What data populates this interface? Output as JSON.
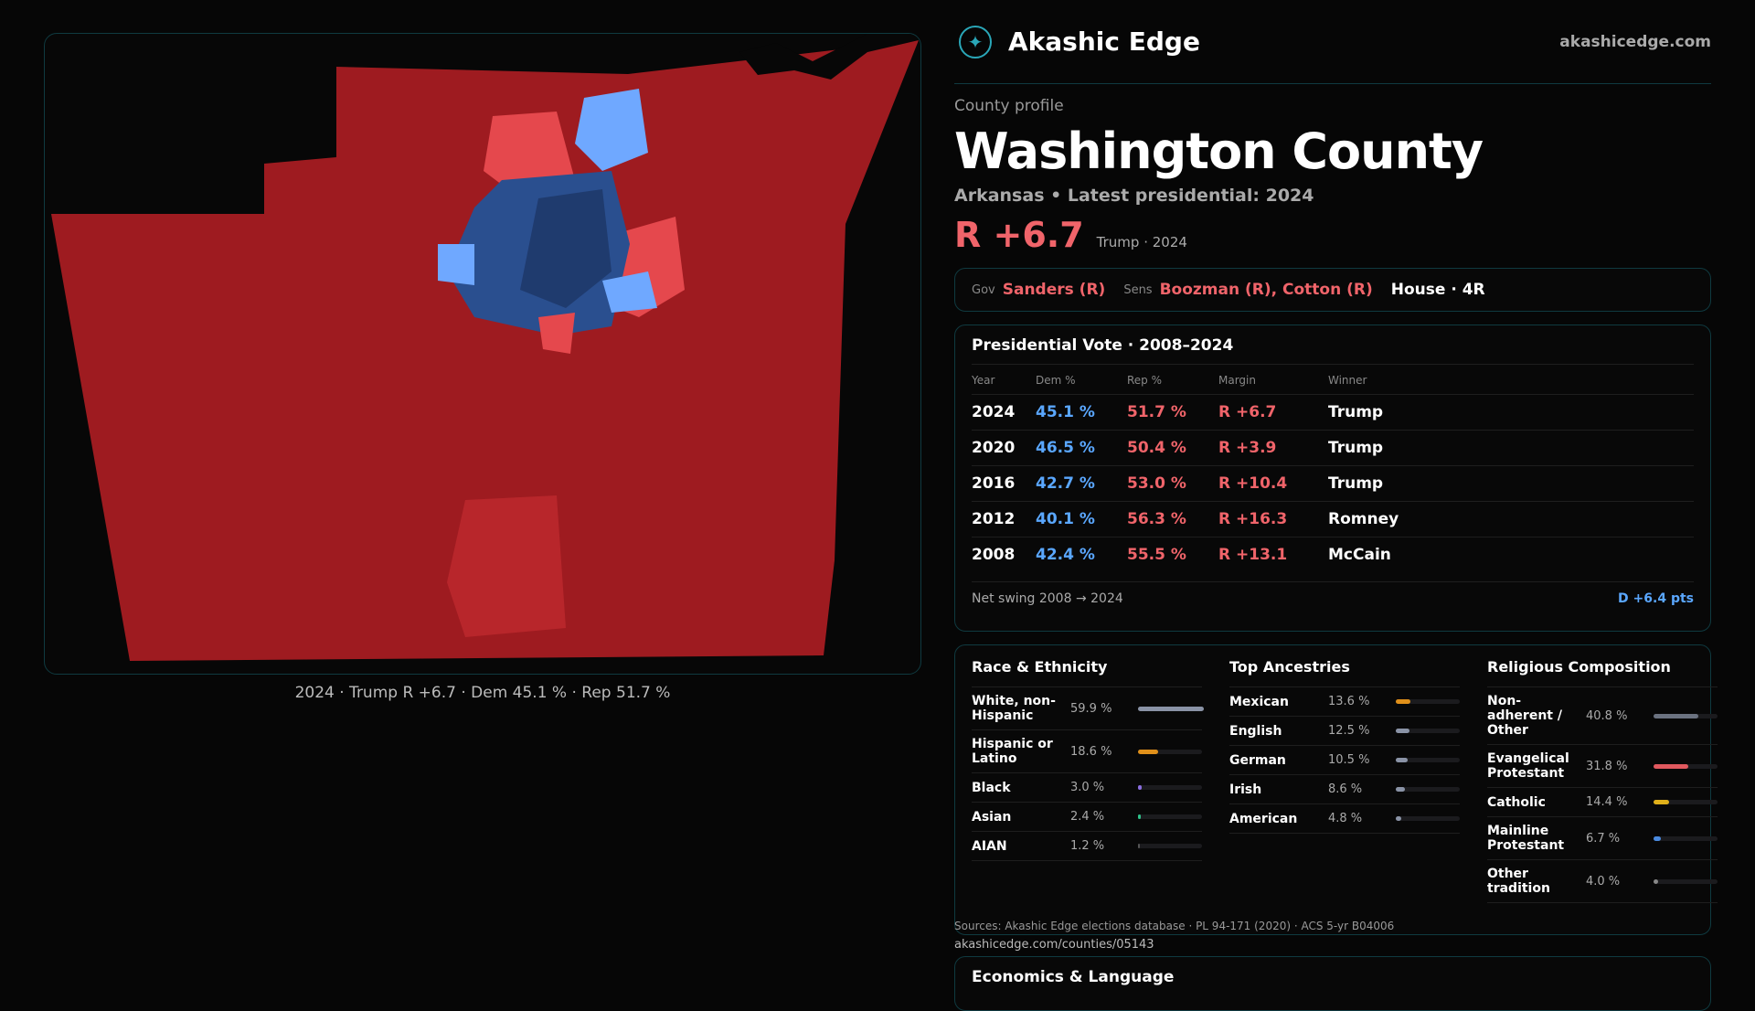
{
  "map": {
    "caption": "2024 · Trump R +6.7 · Dem 45.1 % · Rep 51.7 %",
    "colors": {
      "rep": "#9e1b20",
      "rep_light": "#e5484d",
      "dem": "#2a4f8f",
      "dem_light": "#6fa8ff"
    }
  },
  "header": {
    "brand": "Akashic Edge",
    "site": "akashicedge.com",
    "logo_icon": "compass-icon"
  },
  "profile": {
    "kicker": "County profile",
    "title": "Washington County",
    "subtitle": "Arkansas • Latest presidential: 2024",
    "margin": "R +6.7",
    "margin_note": "Trump · 2024"
  },
  "officials": {
    "gov_label": "Gov",
    "gov": "Sanders (R)",
    "sens_label": "Sens",
    "sens": "Boozman (R), Cotton (R)",
    "house": "House · 4R"
  },
  "vote": {
    "title": "Presidential Vote · 2008–2024",
    "headers": [
      "Year",
      "Dem %",
      "Rep %",
      "Margin",
      "Winner"
    ],
    "rows": [
      [
        "2024",
        "45.1 %",
        "51.7 %",
        "R +6.7",
        "Trump"
      ],
      [
        "2020",
        "46.5 %",
        "50.4 %",
        "R +3.9",
        "Trump"
      ],
      [
        "2016",
        "42.7 %",
        "53.0 %",
        "R +10.4",
        "Trump"
      ],
      [
        "2012",
        "40.1 %",
        "56.3 %",
        "R +16.3",
        "Romney"
      ],
      [
        "2008",
        "42.4 %",
        "55.5 %",
        "R +13.1",
        "McCain"
      ]
    ],
    "swing_label": "Net swing 2008 → 2024",
    "swing": "D +6.4 pts"
  },
  "race": {
    "title": "Race & Ethnicity",
    "rows": [
      {
        "name": "White, non-Hispanic",
        "value": "59.9 %",
        "pct": 59.9,
        "color": "#8a93a6"
      },
      {
        "name": "Hispanic or Latino",
        "value": "18.6 %",
        "pct": 18.6,
        "color": "#e0901a"
      },
      {
        "name": "Black",
        "value": "3.0 %",
        "pct": 3.0,
        "color": "#8a6ee0"
      },
      {
        "name": "Asian",
        "value": "2.4 %",
        "pct": 2.4,
        "color": "#2ec28a"
      },
      {
        "name": "AIAN",
        "value": "1.2 %",
        "pct": 1.2,
        "color": "#555"
      }
    ]
  },
  "ancestry": {
    "title": "Top Ancestries",
    "rows": [
      {
        "name": "Mexican",
        "value": "13.6 %",
        "pct": 13.6,
        "color": "#e0901a"
      },
      {
        "name": "English",
        "value": "12.5 %",
        "pct": 12.5,
        "color": "#8a93a6"
      },
      {
        "name": "German",
        "value": "10.5 %",
        "pct": 10.5,
        "color": "#8a93a6"
      },
      {
        "name": "Irish",
        "value": "8.6 %",
        "pct": 8.6,
        "color": "#8a93a6"
      },
      {
        "name": "American",
        "value": "4.8 %",
        "pct": 4.8,
        "color": "#8a93a6"
      }
    ]
  },
  "religion": {
    "title": "Religious Composition",
    "rows": [
      {
        "name": "Non-adherent / Other",
        "value": "40.8 %",
        "pct": 40.8,
        "color": "#6b7280"
      },
      {
        "name": "Evangelical Protestant",
        "value": "31.8 %",
        "pct": 31.8,
        "color": "#e0585e"
      },
      {
        "name": "Catholic",
        "value": "14.4 %",
        "pct": 14.4,
        "color": "#e0b01a"
      },
      {
        "name": "Mainline Protestant",
        "value": "6.7 %",
        "pct": 6.7,
        "color": "#4a8ae0"
      },
      {
        "name": "Other tradition",
        "value": "4.0 %",
        "pct": 4.0,
        "color": "#888"
      }
    ]
  },
  "sources": "Sources: Akashic Edge elections database · PL 94-171 (2020) · ACS 5-yr B04006",
  "url": "akashicedge.com/counties/05143",
  "econ": {
    "title": "Economics & Language"
  }
}
